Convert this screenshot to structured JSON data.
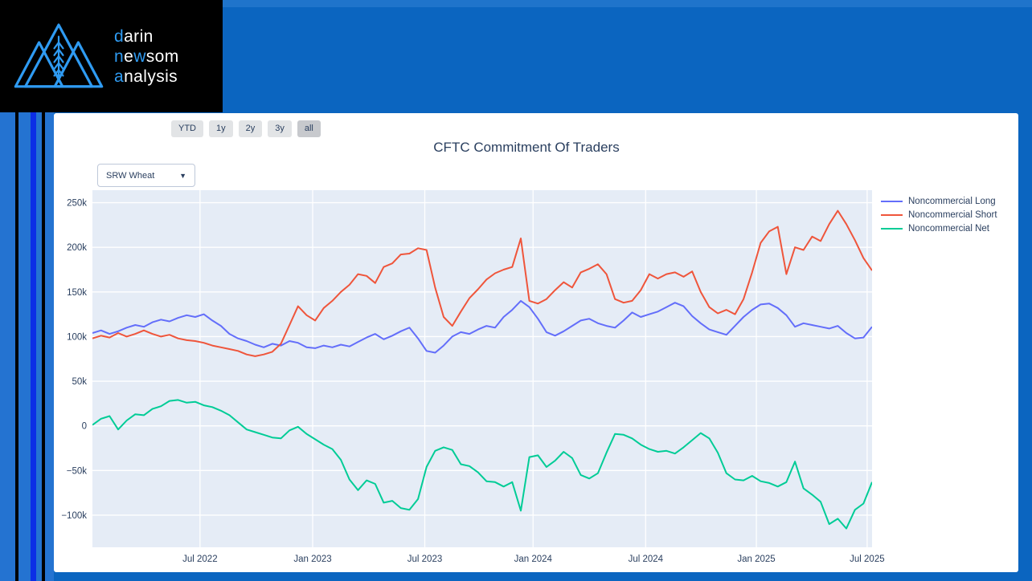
{
  "page": {
    "bg_color": "#0b65c0",
    "accent_stripe_color": "#0b2ee6"
  },
  "logo": {
    "highlight_color": "#2f9bf2",
    "text_color": "#ffffff",
    "lines": [
      [
        {
          "t": "d",
          "hl": true
        },
        {
          "t": "arin",
          "hl": false
        }
      ],
      [
        {
          "t": "n",
          "hl": true
        },
        {
          "t": "e",
          "hl": false
        },
        {
          "t": "w",
          "hl": true
        },
        {
          "t": "som",
          "hl": false
        }
      ],
      [
        {
          "t": "a",
          "hl": true
        },
        {
          "t": "nalysis",
          "hl": false
        }
      ]
    ]
  },
  "toolbar": {
    "range_buttons": [
      {
        "label": "YTD",
        "active": false
      },
      {
        "label": "1y",
        "active": false
      },
      {
        "label": "2y",
        "active": false
      },
      {
        "label": "3y",
        "active": false
      },
      {
        "label": "all",
        "active": true
      }
    ]
  },
  "chart_title": "CFTC Commitment Of Traders",
  "dropdown": {
    "value": "SRW Wheat",
    "arrow": "▼"
  },
  "chart_data": {
    "type": "line",
    "title": "CFTC Commitment Of Traders",
    "unit": "contracts, thousands (k)",
    "plot_bg": "#e5ecf6",
    "grid_color": "#ffffff",
    "text_color": "#2a3f5f",
    "legend_position": "top-right",
    "ylim_k": [
      -136,
      264
    ],
    "x_dates": [
      "2022-01-11",
      "2022-01-25",
      "2022-02-08",
      "2022-02-22",
      "2022-03-08",
      "2022-03-22",
      "2022-04-05",
      "2022-04-19",
      "2022-05-03",
      "2022-05-17",
      "2022-05-31",
      "2022-06-14",
      "2022-06-28",
      "2022-07-12",
      "2022-07-26",
      "2022-08-09",
      "2022-08-23",
      "2022-09-06",
      "2022-09-20",
      "2022-10-04",
      "2022-10-18",
      "2022-11-01",
      "2022-11-15",
      "2022-11-29",
      "2022-12-13",
      "2022-12-27",
      "2023-01-10",
      "2023-01-24",
      "2023-02-07",
      "2023-02-21",
      "2023-03-07",
      "2023-03-21",
      "2023-04-04",
      "2023-04-18",
      "2023-05-02",
      "2023-05-16",
      "2023-05-30",
      "2023-06-13",
      "2023-06-27",
      "2023-07-11",
      "2023-07-25",
      "2023-08-08",
      "2023-08-22",
      "2023-09-05",
      "2023-09-19",
      "2023-10-03",
      "2023-10-17",
      "2023-10-31",
      "2023-11-14",
      "2023-11-28",
      "2023-12-12",
      "2023-12-26",
      "2024-01-09",
      "2024-01-23",
      "2024-02-06",
      "2024-02-20",
      "2024-03-05",
      "2024-03-19",
      "2024-04-02",
      "2024-04-16",
      "2024-04-30",
      "2024-05-14",
      "2024-05-28",
      "2024-06-11",
      "2024-06-25",
      "2024-07-09",
      "2024-07-23",
      "2024-08-06",
      "2024-08-20",
      "2024-09-03",
      "2024-09-17",
      "2024-10-01",
      "2024-10-15",
      "2024-10-29",
      "2024-11-12",
      "2024-11-26",
      "2024-12-10",
      "2024-12-24",
      "2025-01-07",
      "2025-01-21",
      "2025-02-04",
      "2025-02-18",
      "2025-03-04",
      "2025-03-18",
      "2025-04-01",
      "2025-04-15",
      "2025-04-29",
      "2025-05-13",
      "2025-05-27",
      "2025-06-10",
      "2025-06-24",
      "2025-07-08"
    ],
    "series": [
      {
        "name": "Noncommercial Long",
        "color": "#636efa",
        "values_k": [
          104,
          107,
          103,
          106,
          110,
          113,
          111,
          116,
          119,
          117,
          121,
          124,
          122,
          125,
          118,
          112,
          103,
          98,
          95,
          91,
          88,
          92,
          90,
          95,
          93,
          88,
          87,
          90,
          88,
          91,
          89,
          94,
          99,
          103,
          97,
          101,
          106,
          110,
          98,
          84,
          82,
          90,
          100,
          105,
          103,
          108,
          112,
          110,
          122,
          130,
          140,
          133,
          120,
          105,
          101,
          106,
          112,
          118,
          120,
          115,
          112,
          110,
          118,
          127,
          122,
          125,
          128,
          133,
          138,
          134,
          123,
          115,
          108,
          105,
          102,
          112,
          122,
          130,
          136,
          137,
          132,
          124,
          111,
          115,
          113,
          111,
          109,
          112,
          104,
          98,
          99,
          111
        ]
      },
      {
        "name": "Noncommercial Short",
        "color": "#ef553b",
        "values_k": [
          98,
          101,
          99,
          104,
          100,
          103,
          107,
          103,
          100,
          102,
          98,
          96,
          95,
          93,
          90,
          88,
          86,
          84,
          80,
          78,
          80,
          83,
          92,
          113,
          134,
          124,
          118,
          132,
          140,
          150,
          158,
          170,
          168,
          160,
          178,
          182,
          192,
          193,
          199,
          197,
          155,
          122,
          112,
          128,
          143,
          153,
          164,
          171,
          175,
          178,
          210,
          140,
          137,
          142,
          152,
          161,
          155,
          172,
          176,
          181,
          170,
          142,
          138,
          140,
          152,
          170,
          165,
          170,
          172,
          167,
          173,
          150,
          133,
          126,
          130,
          125,
          142,
          172,
          205,
          218,
          223,
          170,
          200,
          197,
          212,
          207,
          226,
          241,
          226,
          208,
          188,
          174
        ]
      },
      {
        "name": "Noncommercial Net",
        "color": "#00cc96",
        "values_k": [
          1,
          8,
          11,
          -4,
          6,
          13,
          12,
          19,
          22,
          28,
          29,
          26,
          27,
          23,
          21,
          17,
          12,
          4,
          -4,
          -7,
          -10,
          -13,
          -14,
          -5,
          -1,
          -9,
          -15,
          -21,
          -26,
          -38,
          -60,
          -72,
          -61,
          -65,
          -86,
          -84,
          -92,
          -94,
          -82,
          -46,
          -28,
          -24,
          -27,
          -43,
          -45,
          -52,
          -62,
          -63,
          -68,
          -63,
          -95,
          -35,
          -33,
          -46,
          -39,
          -29,
          -36,
          -55,
          -59,
          -53,
          -30,
          -9,
          -10,
          -14,
          -21,
          -26,
          -29,
          -28,
          -31,
          -24,
          -16,
          -8,
          -14,
          -30,
          -53,
          -60,
          -61,
          -56,
          -62,
          -64,
          -68,
          -63,
          -40,
          -70,
          -77,
          -85,
          -110,
          -104,
          -115,
          -94,
          -87,
          -63
        ]
      }
    ],
    "y_ticks": [
      {
        "label": "250k",
        "value": 250
      },
      {
        "label": "200k",
        "value": 200
      },
      {
        "label": "150k",
        "value": 150
      },
      {
        "label": "100k",
        "value": 100
      },
      {
        "label": "50k",
        "value": 50
      },
      {
        "label": "0",
        "value": 0
      },
      {
        "label": "−50k",
        "value": -50
      },
      {
        "label": "−100k",
        "value": -100
      }
    ],
    "x_ticks": [
      {
        "label": "Jul 2022",
        "pos": 0.138
      },
      {
        "label": "Jan 2023",
        "pos": 0.2825
      },
      {
        "label": "Jul 2023",
        "pos": 0.4263
      },
      {
        "label": "Jan 2024",
        "pos": 0.5652
      },
      {
        "label": "Jul 2024",
        "pos": 0.7096
      },
      {
        "label": "Jan 2025",
        "pos": 0.8516
      },
      {
        "label": "Jul 2025",
        "pos": 0.9937
      }
    ]
  }
}
